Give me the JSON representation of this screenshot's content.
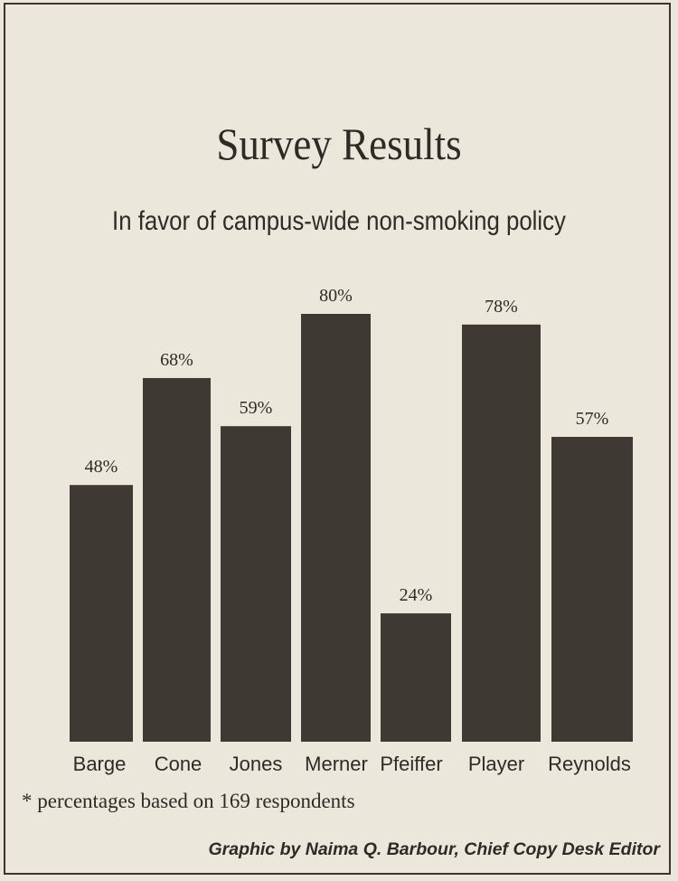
{
  "chart_data": {
    "type": "bar",
    "title": "Survey Results",
    "subtitle": "In favor of campus-wide non-smoking policy",
    "categories": [
      "Barge",
      "Cone",
      "Jones",
      "Merner",
      "Pfeiffer",
      "Player",
      "Reynolds"
    ],
    "values": [
      48,
      68,
      59,
      80,
      24,
      78,
      57
    ],
    "data_labels": [
      "48%",
      "68%",
      "59%",
      "80%",
      "24%",
      "78%",
      "57%"
    ],
    "xlabel": "",
    "ylabel": "",
    "ylim": [
      0,
      100
    ],
    "grid": false,
    "bar_color": "#3f3934"
  },
  "footnote": "* percentages based on 169 respondents",
  "credit": "Graphic by Naima Q. Barbour, Chief Copy Desk Editor"
}
